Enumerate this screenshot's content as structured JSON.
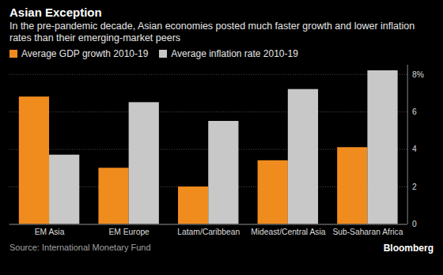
{
  "chart_data": {
    "type": "bar",
    "title": "Asian Exception",
    "subtitle": "In the pre-pandemic decade, Asian economies posted much faster growth and lower inflation rates than their emerging-market peers",
    "categories": [
      "EM Asia",
      "EM Europe",
      "Latam/Caribbean",
      "Mideast/Central Asia",
      "Sub-Saharan Africa"
    ],
    "series": [
      {
        "name": "Average GDP growth 2010-19",
        "color": "#f08c1e",
        "values": [
          6.8,
          3.0,
          2.0,
          3.4,
          4.1
        ]
      },
      {
        "name": "Average inflation rate 2010-19",
        "color": "#c8c8c8",
        "values": [
          3.7,
          6.5,
          5.5,
          7.2,
          8.2
        ]
      }
    ],
    "ylim": [
      0,
      8.5
    ],
    "yticks": [
      0,
      2,
      4,
      6,
      {
        "value": 8,
        "label": "8%"
      }
    ],
    "grid": true,
    "legend": "top",
    "source": "Source: International Monetary Fund",
    "credit": "Bloomberg"
  }
}
